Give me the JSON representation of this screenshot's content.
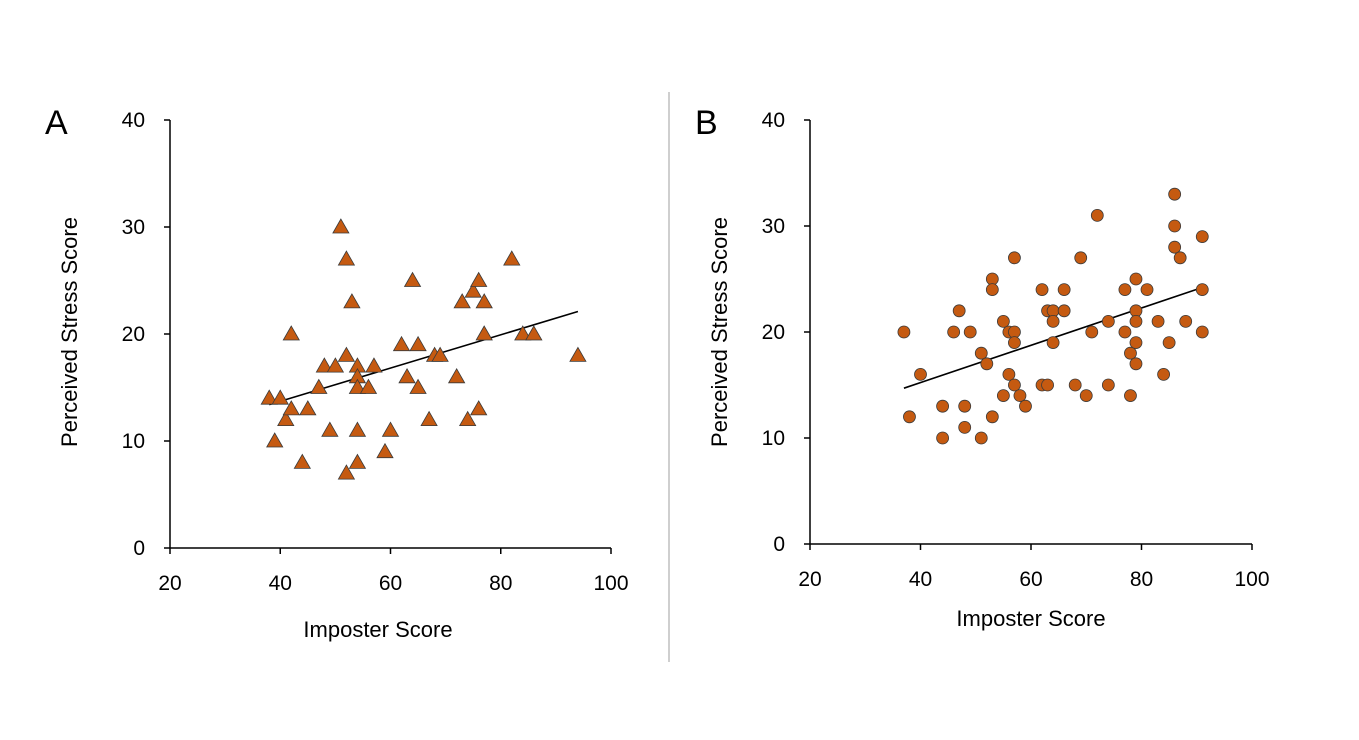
{
  "chart_data": [
    {
      "type": "scatter",
      "panel_label": "A",
      "xlabel": "Imposter Score",
      "ylabel": "Perceived Stress Score",
      "xlim": [
        20,
        100
      ],
      "ylim": [
        0,
        40
      ],
      "xticks": [
        20,
        40,
        60,
        80,
        100
      ],
      "yticks": [
        0,
        10,
        20,
        30,
        40
      ],
      "grid": false,
      "marker": "triangle",
      "marker_color": "#C55A11",
      "points": [
        [
          38,
          14
        ],
        [
          39,
          10
        ],
        [
          40,
          14
        ],
        [
          41,
          12
        ],
        [
          42,
          13
        ],
        [
          42,
          20
        ],
        [
          44,
          8
        ],
        [
          45,
          13
        ],
        [
          47,
          15
        ],
        [
          48,
          17
        ],
        [
          49,
          11
        ],
        [
          50,
          17
        ],
        [
          51,
          30
        ],
        [
          52,
          18
        ],
        [
          52,
          27
        ],
        [
          52,
          7
        ],
        [
          53,
          23
        ],
        [
          54,
          17
        ],
        [
          54,
          16
        ],
        [
          54,
          15
        ],
        [
          54,
          11
        ],
        [
          54,
          8
        ],
        [
          56,
          15
        ],
        [
          57,
          17
        ],
        [
          59,
          9
        ],
        [
          60,
          11
        ],
        [
          62,
          19
        ],
        [
          63,
          16
        ],
        [
          64,
          25
        ],
        [
          65,
          19
        ],
        [
          65,
          15
        ],
        [
          67,
          12
        ],
        [
          68,
          18
        ],
        [
          69,
          18
        ],
        [
          72,
          16
        ],
        [
          73,
          23
        ],
        [
          74,
          12
        ],
        [
          75,
          24
        ],
        [
          76,
          25
        ],
        [
          76,
          13
        ],
        [
          77,
          23
        ],
        [
          77,
          20
        ],
        [
          82,
          27
        ],
        [
          84,
          20
        ],
        [
          86,
          20
        ],
        [
          94,
          18
        ]
      ],
      "trendline": {
        "x": [
          38,
          94
        ],
        "y": [
          13.4,
          22.1
        ]
      }
    },
    {
      "type": "scatter",
      "panel_label": "B",
      "xlabel": "Imposter Score",
      "ylabel": "Perceived Stress Score",
      "xlim": [
        20,
        100
      ],
      "ylim": [
        0,
        40
      ],
      "xticks": [
        20,
        40,
        60,
        80,
        100
      ],
      "yticks": [
        0,
        10,
        20,
        30,
        40
      ],
      "grid": false,
      "marker": "circle",
      "marker_color": "#C55A11",
      "points": [
        [
          37,
          20
        ],
        [
          38,
          12
        ],
        [
          40,
          16
        ],
        [
          44,
          13
        ],
        [
          44,
          10
        ],
        [
          46,
          20
        ],
        [
          47,
          22
        ],
        [
          48,
          13
        ],
        [
          48,
          11
        ],
        [
          49,
          20
        ],
        [
          51,
          18
        ],
        [
          51,
          10
        ],
        [
          52,
          17
        ],
        [
          53,
          25
        ],
        [
          53,
          24
        ],
        [
          53,
          12
        ],
        [
          55,
          21
        ],
        [
          55,
          14
        ],
        [
          56,
          20
        ],
        [
          56,
          16
        ],
        [
          57,
          27
        ],
        [
          57,
          20
        ],
        [
          57,
          19
        ],
        [
          57,
          15
        ],
        [
          58,
          14
        ],
        [
          59,
          13
        ],
        [
          62,
          24
        ],
        [
          62,
          15
        ],
        [
          63,
          22
        ],
        [
          63,
          15
        ],
        [
          64,
          22
        ],
        [
          64,
          21
        ],
        [
          64,
          19
        ],
        [
          66,
          24
        ],
        [
          66,
          22
        ],
        [
          68,
          15
        ],
        [
          69,
          27
        ],
        [
          70,
          14
        ],
        [
          71,
          20
        ],
        [
          72,
          31
        ],
        [
          74,
          21
        ],
        [
          74,
          15
        ],
        [
          77,
          24
        ],
        [
          77,
          20
        ],
        [
          78,
          18
        ],
        [
          78,
          14
        ],
        [
          79,
          25
        ],
        [
          79,
          22
        ],
        [
          79,
          21
        ],
        [
          79,
          19
        ],
        [
          79,
          17
        ],
        [
          81,
          24
        ],
        [
          83,
          21
        ],
        [
          84,
          16
        ],
        [
          85,
          19
        ],
        [
          86,
          33
        ],
        [
          86,
          30
        ],
        [
          86,
          28
        ],
        [
          87,
          27
        ],
        [
          88,
          21
        ],
        [
          91,
          29
        ],
        [
          91,
          24
        ],
        [
          91,
          20
        ]
      ],
      "trendline": {
        "x": [
          37,
          91
        ],
        "y": [
          14.7,
          24.2
        ]
      }
    }
  ]
}
